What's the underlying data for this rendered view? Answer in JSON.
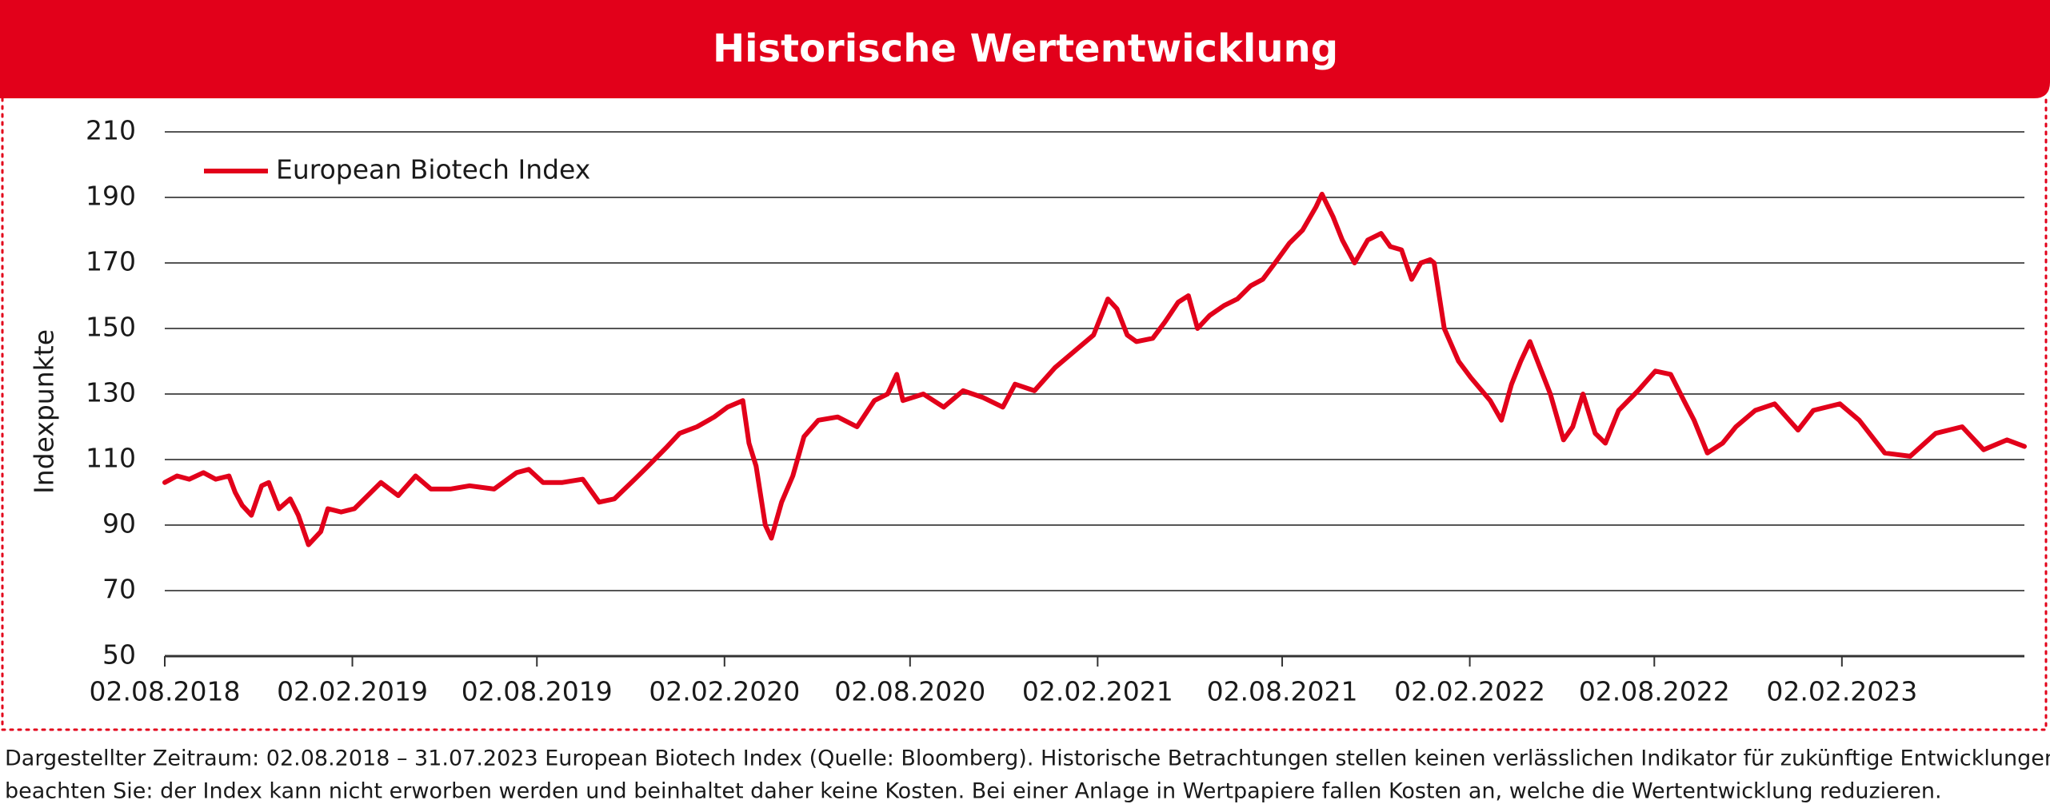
{
  "chart_data": {
    "type": "line",
    "title": "Historische Wertentwicklung",
    "y_label": "Indexpunkte",
    "footnote": [
      "Dargestellter Zeitraum: 02.08.2018 – 31.07.2023 European Biotech Index (Quelle: Bloomberg). Historische Betrachtungen stellen keinen verlässlichen Indikator für zukünftige Entwicklungen dar. Bitte",
      "beachten Sie: der Index kann nicht erworben werden und beinhaltet daher keine Kosten. Bei einer Anlage in Wertpapiere fallen Kosten an, welche die Wertentwicklung reduzieren."
    ],
    "ylim": [
      50,
      210
    ],
    "yticks": [
      50,
      70,
      90,
      110,
      130,
      150,
      170,
      190,
      210
    ],
    "xlim": [
      "02.08.2018",
      "31.07.2023"
    ],
    "xticks": [
      "02.08.2018",
      "02.02.2019",
      "02.08.2019",
      "02.02.2020",
      "02.08.2020",
      "02.02.2021",
      "02.08.2021",
      "02.02.2022",
      "02.08.2022",
      "02.02.2023"
    ],
    "grid": true,
    "legend": "top-left",
    "x": [
      "02.08.2018",
      "14.08.2018",
      "26.08.2018",
      "09.09.2018",
      "21.09.2018",
      "04.10.2018",
      "10.10.2018",
      "17.10.2018",
      "26.10.2018",
      "05.11.2018",
      "12.11.2018",
      "22.11.2018",
      "03.12.2018",
      "11.12.2018",
      "21.12.2018",
      "02.01.2019",
      "09.01.2019",
      "22.01.2019",
      "04.02.2019",
      "17.02.2019",
      "02.03.2019",
      "19.03.2019",
      "05.04.2019",
      "20.04.2019",
      "09.05.2019",
      "28.05.2019",
      "21.06.2019",
      "13.07.2019",
      "25.07.2019",
      "08.08.2019",
      "27.08.2019",
      "16.09.2019",
      "02.10.2019",
      "17.10.2019",
      "06.11.2019",
      "19.11.2019",
      "08.12.2019",
      "20.12.2019",
      "06.01.2020",
      "23.01.2020",
      "05.02.2020",
      "20.02.2020",
      "26.02.2020",
      "04.03.2020",
      "13.03.2020",
      "19.03.2020",
      "29.03.2020",
      "09.04.2020",
      "20.04.2020",
      "04.05.2020",
      "23.05.2020",
      "11.06.2020",
      "28.06.2020",
      "11.07.2020",
      "20.07.2020",
      "26.07.2020",
      "15.08.2020",
      "04.09.2020",
      "23.09.2020",
      "12.10.2020",
      "01.11.2020",
      "13.11.2020",
      "02.12.2020",
      "22.12.2020",
      "10.01.2021",
      "29.01.2021",
      "12.02.2021",
      "21.02.2021",
      "03.03.2021",
      "12.03.2021",
      "28.03.2021",
      "09.04.2021",
      "22.04.2021",
      "02.05.2021",
      "11.05.2021",
      "23.05.2021",
      "06.06.2021",
      "19.06.2021",
      "02.07.2021",
      "14.07.2021",
      "26.07.2021",
      "09.08.2021",
      "22.08.2021",
      "04.09.2021",
      "10.09.2021",
      "21.09.2021",
      "30.09.2021",
      "12.10.2021",
      "25.10.2021",
      "07.11.2021",
      "16.11.2021",
      "27.11.2021",
      "07.12.2021",
      "16.12.2021",
      "25.12.2021",
      "29.12.2021",
      "08.01.2022",
      "22.01.2022",
      "03.02.2022",
      "22.02.2022",
      "05.03.2022",
      "15.03.2022",
      "24.03.2022",
      "02.04.2022",
      "12.04.2022",
      "22.04.2022",
      "05.05.2022",
      "14.05.2022",
      "24.05.2022",
      "05.06.2022",
      "15.06.2022",
      "28.06.2022",
      "17.07.2022",
      "03.08.2022",
      "18.08.2022",
      "31.08.2022",
      "10.09.2022",
      "23.09.2022",
      "08.10.2022",
      "21.10.2022",
      "09.11.2022",
      "28.11.2022",
      "21.12.2022",
      "05.01.2023",
      "31.01.2023",
      "19.02.2023",
      "16.03.2023",
      "10.04.2023",
      "05.05.2023",
      "31.05.2023",
      "21.06.2023",
      "14.07.2023",
      "31.07.2023"
    ],
    "series": [
      {
        "name": "European Biotech Index",
        "color": "#e2001a",
        "values": [
          103,
          105,
          104,
          106,
          104,
          105,
          100,
          96,
          93,
          102,
          103,
          95,
          98,
          93,
          84,
          88,
          95,
          94,
          95,
          99,
          103,
          99,
          105,
          101,
          101,
          102,
          101,
          106,
          107,
          103,
          103,
          104,
          97,
          98,
          104,
          108,
          114,
          118,
          120,
          123,
          126,
          128,
          115,
          108,
          90,
          86,
          97,
          105,
          117,
          122,
          123,
          120,
          128,
          130,
          136,
          128,
          130,
          126,
          131,
          129,
          126,
          133,
          131,
          138,
          143,
          148,
          159,
          156,
          148,
          146,
          147,
          152,
          158,
          160,
          150,
          154,
          157,
          159,
          163,
          165,
          170,
          176,
          180,
          187,
          191,
          184,
          177,
          170,
          177,
          179,
          175,
          174,
          165,
          170,
          171,
          170,
          150,
          140,
          135,
          128,
          122,
          133,
          140,
          146,
          138,
          130,
          116,
          120,
          130,
          118,
          115,
          125,
          131,
          137,
          136,
          128,
          122,
          112,
          115,
          120,
          125,
          127,
          119,
          125,
          127,
          122,
          112,
          111,
          118,
          120,
          113,
          116,
          114
        ]
      }
    ]
  }
}
